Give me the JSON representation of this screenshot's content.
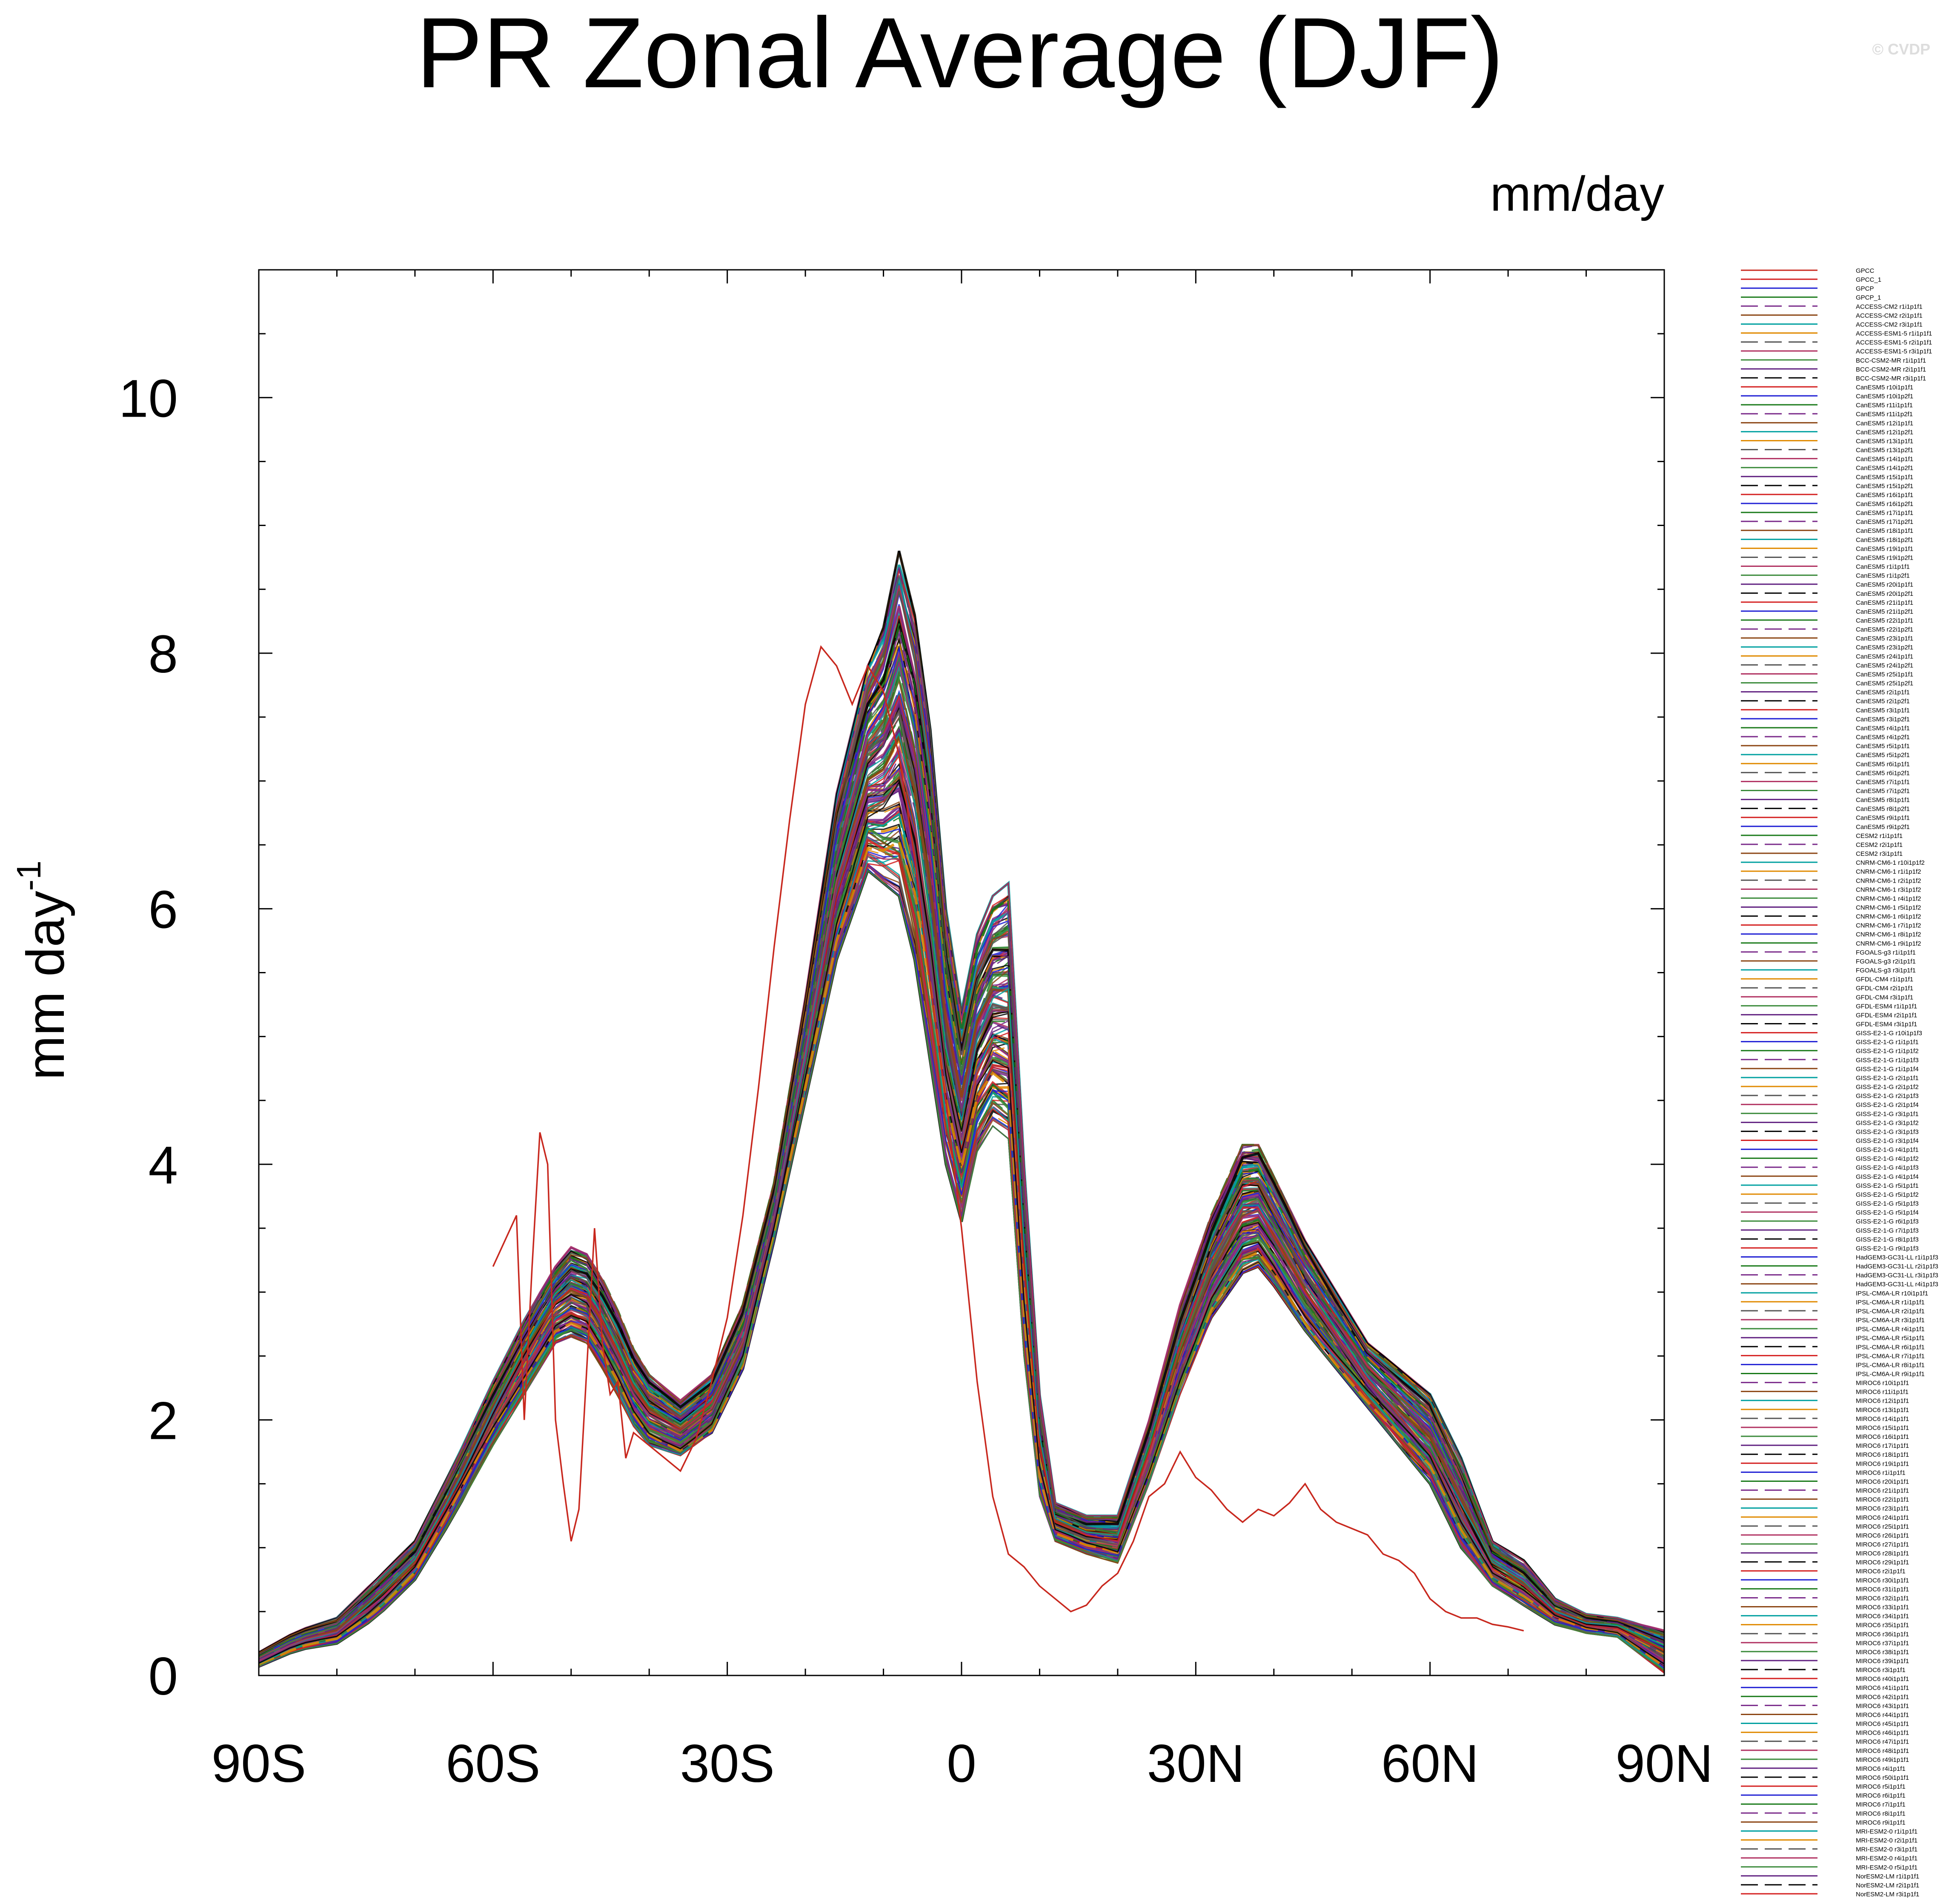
{
  "page": {
    "title": "PR Zonal Average (DJF)",
    "units": "mm/day",
    "watermark": "© CVDP"
  },
  "chart_data": {
    "type": "line",
    "title": "PR Zonal Average (DJF)",
    "units_label": "mm/day",
    "ylabel_base": "mm day",
    "ylabel_exp": "-1",
    "xlabel": "",
    "xlim": [
      -90,
      90
    ],
    "ylim": [
      0,
      11
    ],
    "x_ticks": [
      {
        "value": -90,
        "label": "90S"
      },
      {
        "value": -60,
        "label": "60S"
      },
      {
        "value": -30,
        "label": "30S"
      },
      {
        "value": 0,
        "label": "0"
      },
      {
        "value": 30,
        "label": "30N"
      },
      {
        "value": 60,
        "label": "60N"
      },
      {
        "value": 90,
        "label": "90N"
      }
    ],
    "y_ticks": [
      {
        "value": 0,
        "label": "0"
      },
      {
        "value": 2,
        "label": "2"
      },
      {
        "value": 4,
        "label": "4"
      },
      {
        "value": 6,
        "label": "6"
      },
      {
        "value": 8,
        "label": "8"
      },
      {
        "value": 10,
        "label": "10"
      }
    ],
    "highlight_series": {
      "name": "GPCC",
      "color": "#c8281e",
      "x": [
        -60,
        -57,
        -56,
        -55,
        -54,
        -53,
        -52,
        -51,
        -50,
        -49,
        -48,
        -47,
        -46,
        -45,
        -44,
        -43,
        -42,
        -40,
        -38,
        -36,
        -34,
        -32,
        -30,
        -28,
        -26,
        -24,
        -22,
        -20,
        -18,
        -16,
        -14,
        -12,
        -10,
        -8,
        -6,
        -4,
        -2,
        0,
        2,
        4,
        6,
        8,
        10,
        12,
        14,
        16,
        18,
        20,
        22,
        24,
        26,
        28,
        30,
        32,
        34,
        36,
        38,
        40,
        42,
        44,
        46,
        48,
        50,
        52,
        54,
        56,
        58,
        60,
        62,
        64,
        66,
        68,
        70,
        72
      ],
      "y": [
        3.2,
        3.6,
        2.0,
        3.2,
        4.25,
        4.0,
        2.0,
        1.5,
        1.05,
        1.3,
        2.4,
        3.5,
        2.6,
        2.2,
        2.3,
        1.7,
        1.9,
        1.8,
        1.7,
        1.6,
        1.85,
        2.3,
        2.8,
        3.6,
        4.6,
        5.7,
        6.7,
        7.6,
        8.05,
        7.9,
        7.6,
        7.9,
        7.7,
        7.2,
        6.4,
        5.4,
        4.5,
        3.5,
        2.3,
        1.4,
        0.95,
        0.85,
        0.7,
        0.6,
        0.5,
        0.55,
        0.7,
        0.8,
        1.05,
        1.4,
        1.5,
        1.75,
        1.55,
        1.45,
        1.3,
        1.2,
        1.3,
        1.25,
        1.35,
        1.5,
        1.3,
        1.2,
        1.15,
        1.1,
        0.95,
        0.9,
        0.8,
        0.6,
        0.5,
        0.45,
        0.45,
        0.4,
        0.38,
        0.35
      ]
    },
    "legend": [
      "GPCC",
      "GPCC_1",
      "GPCP",
      "GPCP_1",
      "ACCESS-CM2 r1i1p1f1",
      "ACCESS-CM2 r2i1p1f1",
      "ACCESS-CM2 r3i1p1f1",
      "ACCESS-ESM1-5 r1i1p1f1",
      "ACCESS-ESM1-5 r2i1p1f1",
      "ACCESS-ESM1-5 r3i1p1f1",
      "BCC-CSM2-MR r1i1p1f1",
      "BCC-CSM2-MR r2i1p1f1",
      "BCC-CSM2-MR r3i1p1f1",
      "CanESM5 r10i1p1f1",
      "CanESM5 r10i1p2f1",
      "CanESM5 r11i1p1f1",
      "CanESM5 r11i1p2f1",
      "CanESM5 r12i1p1f1",
      "CanESM5 r12i1p2f1",
      "CanESM5 r13i1p1f1",
      "CanESM5 r13i1p2f1",
      "CanESM5 r14i1p1f1",
      "CanESM5 r14i1p2f1",
      "CanESM5 r15i1p1f1",
      "CanESM5 r15i1p2f1",
      "CanESM5 r16i1p1f1",
      "CanESM5 r16i1p2f1",
      "CanESM5 r17i1p1f1",
      "CanESM5 r17i1p2f1",
      "CanESM5 r18i1p1f1",
      "CanESM5 r18i1p2f1",
      "CanESM5 r19i1p1f1",
      "CanESM5 r19i1p2f1",
      "CanESM5 r1i1p1f1",
      "CanESM5 r1i1p2f1",
      "CanESM5 r20i1p1f1",
      "CanESM5 r20i1p2f1",
      "CanESM5 r21i1p1f1",
      "CanESM5 r21i1p2f1",
      "CanESM5 r22i1p1f1",
      "CanESM5 r22i1p2f1",
      "CanESM5 r23i1p1f1",
      "CanESM5 r23i1p2f1",
      "CanESM5 r24i1p1f1",
      "CanESM5 r24i1p2f1",
      "CanESM5 r25i1p1f1",
      "CanESM5 r25i1p2f1",
      "CanESM5 r2i1p1f1",
      "CanESM5 r2i1p2f1",
      "CanESM5 r3i1p1f1",
      "CanESM5 r3i1p2f1",
      "CanESM5 r4i1p1f1",
      "CanESM5 r4i1p2f1",
      "CanESM5 r5i1p1f1",
      "CanESM5 r5i1p2f1",
      "CanESM5 r6i1p1f1",
      "CanESM5 r6i1p2f1",
      "CanESM5 r7i1p1f1",
      "CanESM5 r7i1p2f1",
      "CanESM5 r8i1p1f1",
      "CanESM5 r8i1p2f1",
      "CanESM5 r9i1p1f1",
      "CanESM5 r9i1p2f1",
      "CESM2 r1i1p1f1",
      "CESM2 r2i1p1f1",
      "CESM2 r3i1p1f1",
      "CNRM-CM6-1 r10i1p1f2",
      "CNRM-CM6-1 r1i1p1f2",
      "CNRM-CM6-1 r2i1p1f2",
      "CNRM-CM6-1 r3i1p1f2",
      "CNRM-CM6-1 r4i1p1f2",
      "CNRM-CM6-1 r5i1p1f2",
      "CNRM-CM6-1 r6i1p1f2",
      "CNRM-CM6-1 r7i1p1f2",
      "CNRM-CM6-1 r8i1p1f2",
      "CNRM-CM6-1 r9i1p1f2",
      "FGOALS-g3 r1i1p1f1",
      "FGOALS-g3 r2i1p1f1",
      "FGOALS-g3 r3i1p1f1",
      "GFDL-CM4 r1i1p1f1",
      "GFDL-CM4 r2i1p1f1",
      "GFDL-CM4 r3i1p1f1",
      "GFDL-ESM4 r1i1p1f1",
      "GFDL-ESM4 r2i1p1f1",
      "GFDL-ESM4 r3i1p1f1",
      "GISS-E2-1-G r10i1p1f3",
      "GISS-E2-1-G r1i1p1f1",
      "GISS-E2-1-G r1i1p1f2",
      "GISS-E2-1-G r1i1p1f3",
      "GISS-E2-1-G r1i1p1f4",
      "GISS-E2-1-G r2i1p1f1",
      "GISS-E2-1-G r2i1p1f2",
      "GISS-E2-1-G r2i1p1f3",
      "GISS-E2-1-G r2i1p1f4",
      "GISS-E2-1-G r3i1p1f1",
      "GISS-E2-1-G r3i1p1f2",
      "GISS-E2-1-G r3i1p1f3",
      "GISS-E2-1-G r3i1p1f4",
      "GISS-E2-1-G r4i1p1f1",
      "GISS-E2-1-G r4i1p1f2",
      "GISS-E2-1-G r4i1p1f3",
      "GISS-E2-1-G r4i1p1f4",
      "GISS-E2-1-G r5i1p1f1",
      "GISS-E2-1-G r5i1p1f2",
      "GISS-E2-1-G r5i1p1f3",
      "GISS-E2-1-G r5i1p1f4",
      "GISS-E2-1-G r6i1p1f3",
      "GISS-E2-1-G r7i1p1f3",
      "GISS-E2-1-G r8i1p1f3",
      "GISS-E2-1-G r9i1p1f3",
      "HadGEM3-GC31-LL r1i1p1f3",
      "HadGEM3-GC31-LL r2i1p1f3",
      "HadGEM3-GC31-LL r3i1p1f3",
      "HadGEM3-GC31-LL r4i1p1f3",
      "IPSL-CM6A-LR r10i1p1f1",
      "IPSL-CM6A-LR r1i1p1f1",
      "IPSL-CM6A-LR r2i1p1f1",
      "IPSL-CM6A-LR r3i1p1f1",
      "IPSL-CM6A-LR r4i1p1f1",
      "IPSL-CM6A-LR r5i1p1f1",
      "IPSL-CM6A-LR r6i1p1f1",
      "IPSL-CM6A-LR r7i1p1f1",
      "IPSL-CM6A-LR r8i1p1f1",
      "IPSL-CM6A-LR r9i1p1f1",
      "MIROC6 r10i1p1f1",
      "MIROC6 r11i1p1f1",
      "MIROC6 r12i1p1f1",
      "MIROC6 r13i1p1f1",
      "MIROC6 r14i1p1f1",
      "MIROC6 r15i1p1f1",
      "MIROC6 r16i1p1f1",
      "MIROC6 r17i1p1f1",
      "MIROC6 r18i1p1f1",
      "MIROC6 r19i1p1f1",
      "MIROC6 r1i1p1f1",
      "MIROC6 r20i1p1f1",
      "MIROC6 r21i1p1f1",
      "MIROC6 r22i1p1f1",
      "MIROC6 r23i1p1f1",
      "MIROC6 r24i1p1f1",
      "MIROC6 r25i1p1f1",
      "MIROC6 r26i1p1f1",
      "MIROC6 r27i1p1f1",
      "MIROC6 r28i1p1f1",
      "MIROC6 r29i1p1f1",
      "MIROC6 r2i1p1f1",
      "MIROC6 r30i1p1f1",
      "MIROC6 r31i1p1f1",
      "MIROC6 r32i1p1f1",
      "MIROC6 r33i1p1f1",
      "MIROC6 r34i1p1f1",
      "MIROC6 r35i1p1f1",
      "MIROC6 r36i1p1f1",
      "MIROC6 r37i1p1f1",
      "MIROC6 r38i1p1f1",
      "MIROC6 r39i1p1f1",
      "MIROC6 r3i1p1f1",
      "MIROC6 r40i1p1f1",
      "MIROC6 r41i1p1f1",
      "MIROC6 r42i1p1f1",
      "MIROC6 r43i1p1f1",
      "MIROC6 r44i1p1f1",
      "MIROC6 r45i1p1f1",
      "MIROC6 r46i1p1f1",
      "MIROC6 r47i1p1f1",
      "MIROC6 r48i1p1f1",
      "MIROC6 r49i1p1f1",
      "MIROC6 r4i1p1f1",
      "MIROC6 r50i1p1f1",
      "MIROC6 r5i1p1f1",
      "MIROC6 r6i1p1f1",
      "MIROC6 r7i1p1f1",
      "MIROC6 r8i1p1f1",
      "MIROC6 r9i1p1f1",
      "MRI-ESM2-0 r1i1p1f1",
      "MRI-ESM2-0 r2i1p1f1",
      "MRI-ESM2-0 r3i1p1f1",
      "MRI-ESM2-0 r4i1p1f1",
      "MRI-ESM2-0 r5i1p1f1",
      "NorESM2-LM r1i1p1f1",
      "NorESM2-LM r2i1p1f1",
      "NorESM2-LM r3i1p1f1"
    ],
    "ensemble_envelope": {
      "x": [
        -90,
        -85,
        -80,
        -75,
        -70,
        -65,
        -60,
        -55,
        -52,
        -50,
        -48,
        -45,
        -42,
        -40,
        -36,
        -32,
        -28,
        -24,
        -20,
        -16,
        -12,
        -10,
        -8,
        -6,
        -4,
        -2,
        0,
        2,
        4,
        6,
        8,
        10,
        12,
        16,
        20,
        24,
        28,
        32,
        36,
        38,
        40,
        44,
        48,
        52,
        56,
        60,
        64,
        68,
        72,
        76,
        80,
        84,
        90
      ],
      "low": [
        0.07,
        0.2,
        0.25,
        0.45,
        0.75,
        1.25,
        1.8,
        2.3,
        2.6,
        2.65,
        2.6,
        2.3,
        1.95,
        1.8,
        1.72,
        1.9,
        2.4,
        3.4,
        4.5,
        5.6,
        6.3,
        6.2,
        6.1,
        5.6,
        4.8,
        4.0,
        3.55,
        4.1,
        4.3,
        4.2,
        2.5,
        1.4,
        1.05,
        0.95,
        0.88,
        1.5,
        2.2,
        2.8,
        3.15,
        3.2,
        3.05,
        2.7,
        2.4,
        2.1,
        1.8,
        1.5,
        1.0,
        0.7,
        0.55,
        0.4,
        0.33,
        0.3,
        0.02
      ],
      "high": [
        0.18,
        0.35,
        0.45,
        0.75,
        1.05,
        1.65,
        2.3,
        2.9,
        3.2,
        3.35,
        3.3,
        3.0,
        2.55,
        2.35,
        2.15,
        2.35,
        2.9,
        3.85,
        5.3,
        6.9,
        7.9,
        8.2,
        8.8,
        8.3,
        7.4,
        6.0,
        5.2,
        5.8,
        6.1,
        6.2,
        4.0,
        2.2,
        1.35,
        1.25,
        1.25,
        2.0,
        2.9,
        3.6,
        4.15,
        4.15,
        3.9,
        3.4,
        3.0,
        2.6,
        2.4,
        2.2,
        1.7,
        1.05,
        0.9,
        0.6,
        0.48,
        0.45,
        0.35
      ]
    }
  }
}
